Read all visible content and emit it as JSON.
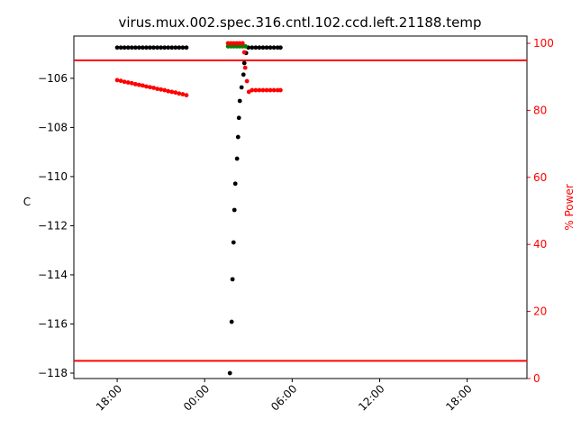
{
  "chart_data": {
    "type": "scatter",
    "title": "virus.mux.002.spec.316.cntl.102.ccd.left.21188.temp",
    "y_label": "C",
    "y2_label": "% Power",
    "y2_color": "#ff0000",
    "xlim": [
      15.03,
      46.1
    ],
    "xticks": [
      {
        "value": 18,
        "label": "18:00"
      },
      {
        "value": 24,
        "label": "00:00"
      },
      {
        "value": 30,
        "label": "06:00"
      },
      {
        "value": 36,
        "label": "12:00"
      },
      {
        "value": 42,
        "label": "18:00"
      }
    ],
    "ylim": [
      -118.22,
      -104.28
    ],
    "yticks": [
      {
        "value": -106,
        "label": "−106"
      },
      {
        "value": -108,
        "label": "−108"
      },
      {
        "value": -110,
        "label": "−110"
      },
      {
        "value": -112,
        "label": "−112"
      },
      {
        "value": -114,
        "label": "−114"
      },
      {
        "value": -116,
        "label": "−116"
      },
      {
        "value": -118,
        "label": "−118"
      }
    ],
    "y2lim": [
      0,
      102.15
    ],
    "y2ticks": [
      0,
      20,
      40,
      60,
      80,
      100
    ],
    "hlines": {
      "color": "#ff0000",
      "values": [
        -105.27,
        -117.5
      ]
    },
    "series": [
      {
        "color": "#000000",
        "x": [
          18.0,
          18.25,
          18.5,
          18.75,
          19.0,
          19.25,
          19.5,
          19.75,
          20.0,
          20.25,
          20.5,
          20.75,
          21.0,
          21.25,
          21.5,
          21.75,
          22.0,
          22.25,
          22.5,
          22.75
        ],
        "values": [
          -104.75,
          -104.75,
          -104.75,
          -104.75,
          -104.75,
          -104.75,
          -104.75,
          -104.75,
          -104.75,
          -104.75,
          -104.75,
          -104.75,
          -104.75,
          -104.75,
          -104.75,
          -104.75,
          -104.75,
          -104.75,
          -104.75,
          -104.75
        ]
      },
      {
        "color": "#000000",
        "x": [
          25.73,
          25.85,
          25.91,
          25.98,
          26.04,
          26.1,
          26.22,
          26.29,
          26.35,
          26.41,
          26.53,
          26.66,
          26.72,
          26.84
        ],
        "values": [
          -118.0,
          -115.91,
          -114.18,
          -112.68,
          -111.36,
          -110.29,
          -109.27,
          -108.39,
          -107.61,
          -106.92,
          -106.37,
          -105.85,
          -105.38,
          -104.97
        ]
      },
      {
        "color": "#000000",
        "x": [
          27.0,
          27.25,
          27.5,
          27.75,
          28.0,
          28.25,
          28.5,
          28.75,
          29.0,
          29.2
        ],
        "values": [
          -104.75,
          -104.75,
          -104.75,
          -104.75,
          -104.75,
          -104.75,
          -104.75,
          -104.75,
          -104.75,
          -104.75
        ]
      },
      {
        "color": "#008000",
        "x": [
          25.6,
          25.8,
          26.0,
          26.2,
          26.4,
          26.6,
          26.8
        ],
        "values": [
          -104.7,
          -104.7,
          -104.7,
          -104.7,
          -104.7,
          -104.7,
          -104.7
        ]
      },
      {
        "color": "#ff0000",
        "axis": "y2",
        "x": [
          18.0,
          18.25,
          18.5,
          18.75,
          19.0,
          19.25,
          19.5,
          19.75,
          20.0,
          20.25,
          20.5,
          20.75,
          21.0,
          21.25,
          21.5,
          21.75,
          22.0,
          22.25,
          22.5,
          22.75
        ],
        "values": [
          89.0,
          88.8,
          88.5,
          88.3,
          88.1,
          87.8,
          87.6,
          87.4,
          87.1,
          86.9,
          86.7,
          86.4,
          86.2,
          86.0,
          85.7,
          85.5,
          85.3,
          85.0,
          84.8,
          84.5
        ]
      },
      {
        "color": "#ff0000",
        "axis": "y2",
        "x": [
          25.6,
          25.8,
          26.0,
          26.2,
          26.4,
          26.6,
          26.72,
          26.78,
          26.9,
          27.03,
          27.25,
          27.5,
          27.75,
          28.0,
          28.25,
          28.5,
          28.75,
          29.0,
          29.2
        ],
        "values": [
          100,
          100,
          100,
          100,
          100,
          100,
          97.3,
          92.7,
          88.7,
          85.5,
          86,
          86,
          86,
          86,
          86,
          86,
          86,
          86,
          86
        ]
      }
    ]
  }
}
